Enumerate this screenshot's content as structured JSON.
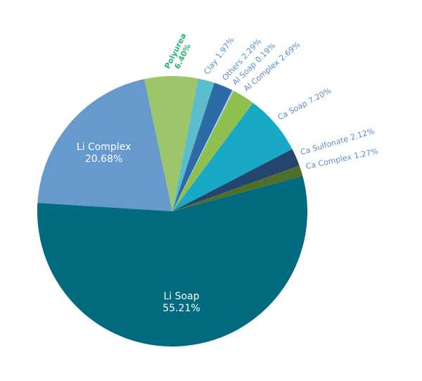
{
  "chart_data": {
    "type": "pie",
    "categories": [
      "Polyurea",
      "Clay",
      "Others",
      "Al Soap",
      "Al Complex",
      "Ca Soap",
      "Ca Sulfonate",
      "Ca Complex",
      "Li Soap",
      "Li Complex"
    ],
    "values": [
      6.4,
      1.97,
      2.29,
      0.19,
      2.69,
      7.2,
      2.12,
      1.27,
      55.21,
      20.68
    ],
    "value_labels": [
      "6.40%",
      "1.97%",
      "2.29%",
      "0.19%",
      "2.69%",
      "7.20%",
      "2.12%",
      "1.27%",
      "55.21%",
      "20.68%"
    ],
    "colors": [
      "#9dc66b",
      "#5bbccc",
      "#2e6aa6",
      "#a9d6ec",
      "#8fbf4e",
      "#17a9c6",
      "#24456e",
      "#4f6e2a",
      "#006b7e",
      "#6699cc"
    ],
    "label_colors": [
      "#2bb673",
      "#5b8fc7",
      "#5b8fc7",
      "#5b8fc7",
      "#5b8fc7",
      "#5b8fc7",
      "#5b8fc7",
      "#5b8fc7",
      "#ffffff",
      "#ffffff"
    ]
  }
}
